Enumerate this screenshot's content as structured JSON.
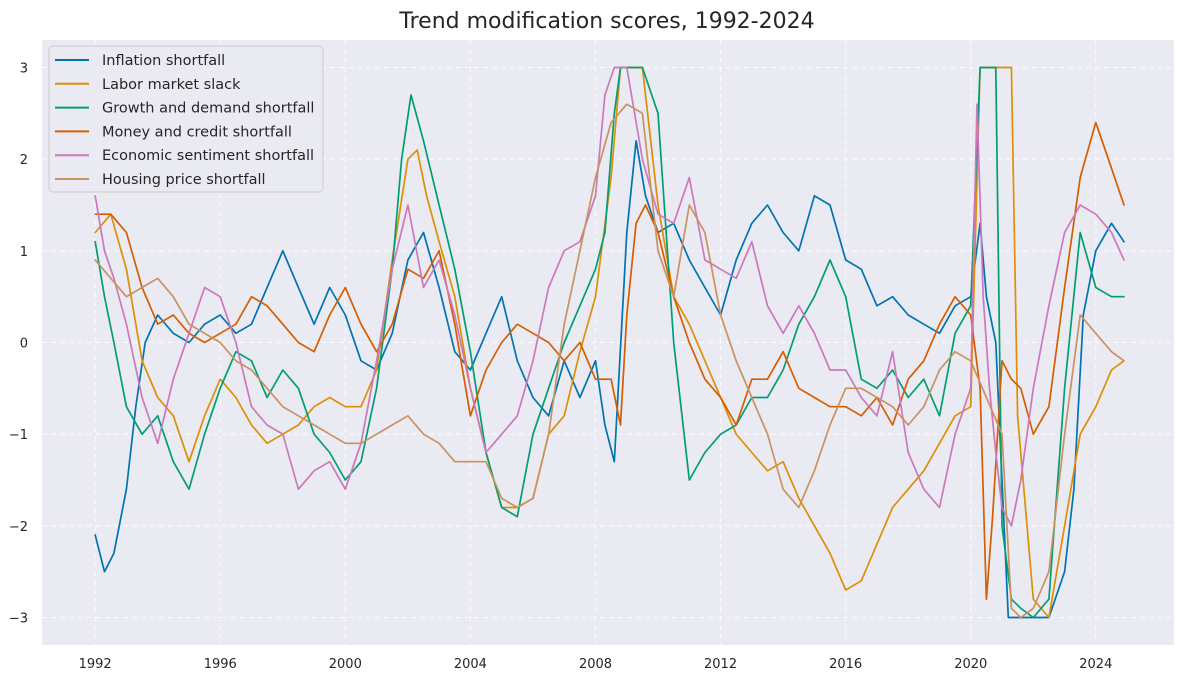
{
  "chart_data": {
    "type": "line",
    "title": "Trend modification scores, 1992-2024",
    "xlabel": "",
    "ylabel": "",
    "xlim": [
      1990.3,
      2026.5
    ],
    "ylim": [
      -3.3,
      3.3
    ],
    "x_ticks": [
      1992,
      1996,
      2000,
      2004,
      2008,
      2012,
      2016,
      2020,
      2024
    ],
    "y_ticks": [
      3,
      2,
      1,
      0,
      -1,
      -2,
      -3
    ],
    "y_tick_labels": [
      "3",
      "2",
      "1",
      "0",
      "−1",
      "−2",
      "−3"
    ],
    "grid": true,
    "legend_position": "upper-left",
    "background": "#EAEAF2",
    "series": [
      {
        "name": "Inflation shortfall",
        "color": "#0173B2",
        "x": [
          1992.0,
          1992.3,
          1992.6,
          1993.0,
          1993.3,
          1993.6,
          1994.0,
          1994.5,
          1995.0,
          1995.5,
          1996.0,
          1996.5,
          1997.0,
          1997.5,
          1998.0,
          1998.5,
          1999.0,
          1999.5,
          2000.0,
          2000.5,
          2001.0,
          2001.5,
          2002.0,
          2002.5,
          2003.0,
          2003.5,
          2004.0,
          2004.5,
          2005.0,
          2005.5,
          2006.0,
          2006.5,
          2007.0,
          2007.5,
          2008.0,
          2008.3,
          2008.6,
          2009.0,
          2009.3,
          2009.6,
          2010.0,
          2010.5,
          2011.0,
          2011.5,
          2012.0,
          2012.5,
          2013.0,
          2013.5,
          2014.0,
          2014.5,
          2015.0,
          2015.5,
          2016.0,
          2016.5,
          2017.0,
          2017.5,
          2018.0,
          2018.5,
          2019.0,
          2019.5,
          2020.0,
          2020.3,
          2020.5,
          2020.8,
          2021.0,
          2021.2,
          2021.5,
          2022.0,
          2022.5,
          2023.0,
          2023.3,
          2023.6,
          2024.0,
          2024.5,
          2024.9
        ],
        "y": [
          -2.1,
          -2.5,
          -2.3,
          -1.6,
          -0.7,
          0.0,
          0.3,
          0.1,
          0.0,
          0.2,
          0.3,
          0.1,
          0.2,
          0.6,
          1.0,
          0.6,
          0.2,
          0.6,
          0.3,
          -0.2,
          -0.3,
          0.1,
          0.9,
          1.2,
          0.6,
          -0.1,
          -0.3,
          0.1,
          0.5,
          -0.2,
          -0.6,
          -0.8,
          -0.2,
          -0.6,
          -0.2,
          -0.9,
          -1.3,
          1.2,
          2.2,
          1.6,
          1.2,
          1.3,
          0.9,
          0.6,
          0.3,
          0.9,
          1.3,
          1.5,
          1.2,
          1.0,
          1.6,
          1.5,
          0.9,
          0.8,
          0.4,
          0.5,
          0.3,
          0.2,
          0.1,
          0.4,
          0.5,
          1.3,
          0.5,
          0.0,
          -1.5,
          -3.0,
          -3.0,
          -3.0,
          -3.0,
          -2.5,
          -1.6,
          0.3,
          1.0,
          1.3,
          1.1
        ]
      },
      {
        "name": "Labor market slack",
        "color": "#DE8F05",
        "x": [
          1992.0,
          1992.5,
          1993.0,
          1993.5,
          1994.0,
          1994.5,
          1995.0,
          1995.5,
          1996.0,
          1996.5,
          1997.0,
          1997.5,
          1998.0,
          1998.5,
          1999.0,
          1999.5,
          2000.0,
          2000.5,
          2001.0,
          2001.5,
          2002.0,
          2002.3,
          2002.6,
          2003.0,
          2003.5,
          2004.0,
          2004.5,
          2005.0,
          2005.5,
          2006.0,
          2006.5,
          2007.0,
          2007.5,
          2008.0,
          2008.5,
          2008.8,
          2009.0,
          2009.5,
          2010.0,
          2010.5,
          2011.0,
          2011.5,
          2012.0,
          2012.5,
          2013.0,
          2013.5,
          2014.0,
          2014.5,
          2015.0,
          2015.5,
          2016.0,
          2016.5,
          2017.0,
          2017.5,
          2018.0,
          2018.5,
          2019.0,
          2019.5,
          2020.0,
          2020.3,
          2020.5,
          2021.0,
          2021.3,
          2021.5,
          2021.8,
          2022.0,
          2022.5,
          2023.0,
          2023.5,
          2024.0,
          2024.5,
          2024.9
        ],
        "y": [
          1.2,
          1.4,
          0.8,
          -0.2,
          -0.6,
          -0.8,
          -1.3,
          -0.8,
          -0.4,
          -0.6,
          -0.9,
          -1.1,
          -1.0,
          -0.9,
          -0.7,
          -0.6,
          -0.7,
          -0.7,
          -0.3,
          0.9,
          2.0,
          2.1,
          1.6,
          1.1,
          0.5,
          -0.5,
          -1.2,
          -1.8,
          -1.8,
          -1.7,
          -1.0,
          -0.8,
          -0.1,
          0.5,
          1.8,
          3.0,
          3.0,
          3.0,
          1.5,
          0.5,
          0.2,
          -0.2,
          -0.6,
          -1.0,
          -1.2,
          -1.4,
          -1.3,
          -1.7,
          -2.0,
          -2.3,
          -2.7,
          -2.6,
          -2.2,
          -1.8,
          -1.6,
          -1.4,
          -1.1,
          -0.8,
          -0.7,
          3.0,
          3.0,
          3.0,
          3.0,
          -0.8,
          -2.0,
          -2.8,
          -3.0,
          -2.0,
          -1.0,
          -0.7,
          -0.3,
          -0.2
        ]
      },
      {
        "name": "Growth and demand shortfall",
        "color": "#029E73",
        "x": [
          1992.0,
          1992.3,
          1992.6,
          1993.0,
          1993.5,
          1994.0,
          1994.5,
          1995.0,
          1995.5,
          1996.0,
          1996.5,
          1997.0,
          1997.5,
          1998.0,
          1998.5,
          1999.0,
          1999.5,
          2000.0,
          2000.5,
          2001.0,
          2001.5,
          2001.8,
          2002.1,
          2002.5,
          2003.0,
          2003.5,
          2004.0,
          2004.5,
          2005.0,
          2005.5,
          2006.0,
          2006.5,
          2007.0,
          2007.5,
          2008.0,
          2008.3,
          2008.6,
          2008.8,
          2009.0,
          2009.5,
          2010.0,
          2010.5,
          2011.0,
          2011.5,
          2012.0,
          2012.5,
          2013.0,
          2013.5,
          2014.0,
          2014.5,
          2015.0,
          2015.5,
          2016.0,
          2016.5,
          2017.0,
          2017.5,
          2018.0,
          2018.5,
          2019.0,
          2019.5,
          2020.0,
          2020.3,
          2020.5,
          2020.8,
          2021.0,
          2021.3,
          2021.6,
          2022.0,
          2022.5,
          2023.0,
          2023.5,
          2024.0,
          2024.5,
          2024.9
        ],
        "y": [
          1.1,
          0.5,
          0.0,
          -0.7,
          -1.0,
          -0.8,
          -1.3,
          -1.6,
          -1.0,
          -0.5,
          -0.1,
          -0.2,
          -0.6,
          -0.3,
          -0.5,
          -1.0,
          -1.2,
          -1.5,
          -1.3,
          -0.5,
          0.8,
          2.0,
          2.7,
          2.2,
          1.5,
          0.8,
          -0.1,
          -1.2,
          -1.8,
          -1.9,
          -1.0,
          -0.5,
          0.0,
          0.4,
          0.8,
          1.2,
          2.5,
          3.0,
          3.0,
          3.0,
          2.5,
          0.0,
          -1.5,
          -1.2,
          -1.0,
          -0.9,
          -0.6,
          -0.6,
          -0.3,
          0.2,
          0.5,
          0.9,
          0.5,
          -0.4,
          -0.5,
          -0.3,
          -0.6,
          -0.4,
          -0.8,
          0.1,
          0.4,
          3.0,
          3.0,
          3.0,
          -2.0,
          -2.8,
          -2.9,
          -3.0,
          -2.8,
          -0.5,
          1.2,
          0.6,
          0.5,
          0.5
        ]
      },
      {
        "name": "Money and credit shortfall",
        "color": "#D55E00",
        "x": [
          1992.0,
          1992.5,
          1993.0,
          1993.5,
          1994.0,
          1994.5,
          1995.0,
          1995.5,
          1996.0,
          1996.5,
          1997.0,
          1997.5,
          1998.0,
          1998.5,
          1999.0,
          1999.5,
          2000.0,
          2000.5,
          2001.0,
          2001.5,
          2002.0,
          2002.5,
          2003.0,
          2003.5,
          2004.0,
          2004.5,
          2005.0,
          2005.5,
          2006.0,
          2006.5,
          2007.0,
          2007.5,
          2008.0,
          2008.5,
          2008.8,
          2009.0,
          2009.3,
          2009.6,
          2010.0,
          2010.5,
          2011.0,
          2011.5,
          2012.0,
          2012.5,
          2013.0,
          2013.5,
          2014.0,
          2014.5,
          2015.0,
          2015.5,
          2016.0,
          2016.5,
          2017.0,
          2017.5,
          2018.0,
          2018.5,
          2019.0,
          2019.5,
          2020.0,
          2020.3,
          2020.5,
          2020.7,
          2021.0,
          2021.3,
          2021.6,
          2022.0,
          2022.5,
          2023.0,
          2023.5,
          2024.0,
          2024.5,
          2024.9
        ],
        "y": [
          1.4,
          1.4,
          1.2,
          0.6,
          0.2,
          0.3,
          0.1,
          0.0,
          0.1,
          0.2,
          0.5,
          0.4,
          0.2,
          0.0,
          -0.1,
          0.3,
          0.6,
          0.2,
          -0.1,
          0.2,
          0.8,
          0.7,
          1.0,
          0.2,
          -0.8,
          -0.3,
          0.0,
          0.2,
          0.1,
          0.0,
          -0.2,
          0.0,
          -0.4,
          -0.4,
          -0.9,
          0.3,
          1.3,
          1.5,
          1.2,
          0.5,
          0.0,
          -0.4,
          -0.6,
          -0.9,
          -0.4,
          -0.4,
          -0.1,
          -0.5,
          -0.6,
          -0.7,
          -0.7,
          -0.8,
          -0.6,
          -0.9,
          -0.4,
          -0.2,
          0.2,
          0.5,
          0.3,
          -0.5,
          -2.8,
          -1.9,
          -0.2,
          -0.4,
          -0.5,
          -1.0,
          -0.7,
          0.6,
          1.8,
          2.4,
          1.9,
          1.5
        ]
      },
      {
        "name": "Economic sentiment shortfall",
        "color": "#CC78BC",
        "x": [
          1992.0,
          1992.3,
          1992.6,
          1993.0,
          1993.5,
          1994.0,
          1994.5,
          1995.0,
          1995.5,
          1996.0,
          1996.5,
          1997.0,
          1997.5,
          1998.0,
          1998.5,
          1999.0,
          1999.5,
          2000.0,
          2000.5,
          2001.0,
          2001.5,
          2002.0,
          2002.5,
          2003.0,
          2003.5,
          2004.0,
          2004.5,
          2005.0,
          2005.5,
          2006.0,
          2006.5,
          2007.0,
          2007.5,
          2008.0,
          2008.3,
          2008.6,
          2009.0,
          2009.5,
          2010.0,
          2010.5,
          2011.0,
          2011.5,
          2012.0,
          2012.5,
          2013.0,
          2013.5,
          2014.0,
          2014.5,
          2015.0,
          2015.5,
          2016.0,
          2016.5,
          2017.0,
          2017.5,
          2018.0,
          2018.5,
          2019.0,
          2019.5,
          2020.0,
          2020.2,
          2020.4,
          2020.6,
          2020.8,
          2021.0,
          2021.3,
          2021.6,
          2022.0,
          2022.5,
          2023.0,
          2023.5,
          2024.0,
          2024.5,
          2024.9
        ],
        "y": [
          1.6,
          1.0,
          0.7,
          0.2,
          -0.6,
          -1.1,
          -0.4,
          0.1,
          0.6,
          0.5,
          0.0,
          -0.7,
          -0.9,
          -1.0,
          -1.6,
          -1.4,
          -1.3,
          -1.6,
          -1.1,
          -0.2,
          0.8,
          1.5,
          0.6,
          0.9,
          0.3,
          -0.5,
          -1.2,
          -1.0,
          -0.8,
          -0.2,
          0.6,
          1.0,
          1.1,
          1.6,
          2.7,
          3.0,
          3.0,
          2.0,
          1.4,
          1.3,
          1.8,
          0.9,
          0.8,
          0.7,
          1.1,
          0.4,
          0.1,
          0.4,
          0.1,
          -0.3,
          -0.3,
          -0.6,
          -0.8,
          -0.1,
          -1.2,
          -1.6,
          -1.8,
          -1.0,
          -0.5,
          2.6,
          0.5,
          -0.5,
          -1.2,
          -1.8,
          -2.0,
          -1.5,
          -0.5,
          0.4,
          1.2,
          1.5,
          1.4,
          1.2,
          0.9
        ]
      },
      {
        "name": "Housing price shortfall",
        "color": "#CA9161",
        "x": [
          1992.0,
          1992.5,
          1993.0,
          1993.5,
          1994.0,
          1994.5,
          1995.0,
          1995.5,
          1996.0,
          1996.5,
          1997.0,
          1997.5,
          1998.0,
          1998.5,
          1999.0,
          1999.5,
          2000.0,
          2000.5,
          2001.0,
          2001.5,
          2002.0,
          2002.5,
          2003.0,
          2003.5,
          2004.0,
          2004.5,
          2005.0,
          2005.5,
          2006.0,
          2006.5,
          2007.0,
          2007.5,
          2008.0,
          2008.5,
          2009.0,
          2009.5,
          2010.0,
          2010.5,
          2011.0,
          2011.5,
          2012.0,
          2012.5,
          2013.0,
          2013.5,
          2014.0,
          2014.5,
          2015.0,
          2015.5,
          2016.0,
          2016.5,
          2017.0,
          2017.5,
          2018.0,
          2018.5,
          2019.0,
          2019.5,
          2020.0,
          2020.5,
          2021.0,
          2021.3,
          2021.6,
          2022.0,
          2022.5,
          2023.0,
          2023.5,
          2024.0,
          2024.5,
          2024.9
        ],
        "y": [
          0.9,
          0.7,
          0.5,
          0.6,
          0.7,
          0.5,
          0.2,
          0.1,
          0.0,
          -0.2,
          -0.3,
          -0.5,
          -0.7,
          -0.8,
          -0.9,
          -1.0,
          -1.1,
          -1.1,
          -1.0,
          -0.9,
          -0.8,
          -1.0,
          -1.1,
          -1.3,
          -1.3,
          -1.3,
          -1.7,
          -1.8,
          -1.7,
          -1.0,
          0.2,
          1.0,
          1.8,
          2.4,
          2.6,
          2.5,
          1.0,
          0.5,
          1.5,
          1.2,
          0.3,
          -0.2,
          -0.6,
          -1.0,
          -1.6,
          -1.8,
          -1.4,
          -0.9,
          -0.5,
          -0.5,
          -0.6,
          -0.7,
          -0.9,
          -0.7,
          -0.3,
          -0.1,
          -0.2,
          -0.6,
          -1.0,
          -2.9,
          -3.0,
          -2.9,
          -2.5,
          -1.0,
          0.3,
          0.1,
          -0.1,
          -0.2
        ]
      }
    ]
  }
}
